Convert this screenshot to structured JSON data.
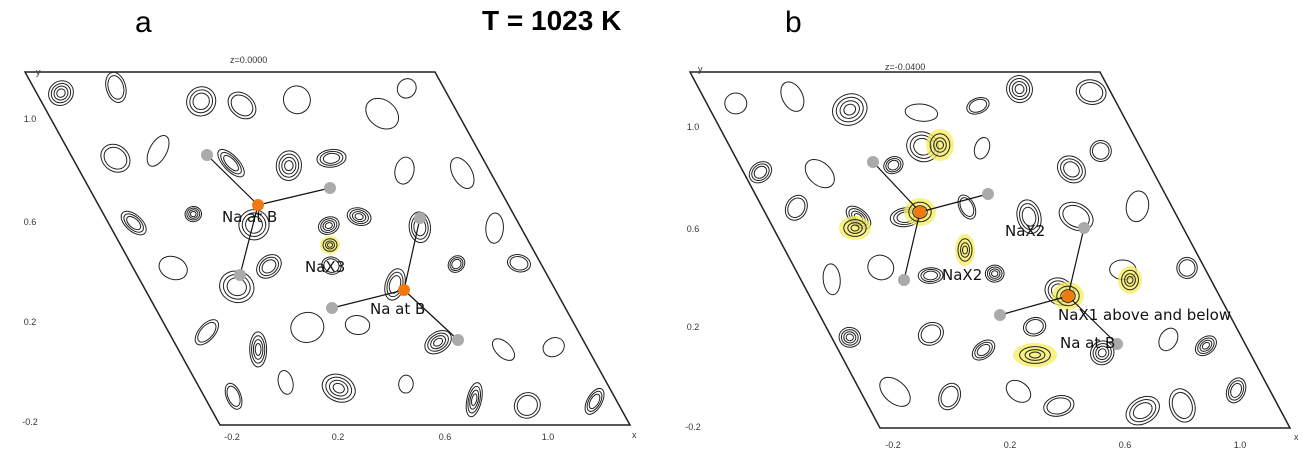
{
  "header": {
    "panel_a": "a",
    "title": "T = 1023 K",
    "panel_b": "b"
  },
  "panels": [
    {
      "z_label": "z=0.0000",
      "x_axis": "x",
      "y_axis": "y",
      "xticks": [
        "-0.2",
        "0.2",
        "0.6",
        "1.0"
      ],
      "yticks": [
        "1.0",
        "0.6",
        "0.2",
        "-0.2"
      ],
      "labels": [
        "Na at B",
        "NaX3",
        "Na at B"
      ]
    },
    {
      "z_label": "z=-0.0400",
      "x_axis": "x",
      "y_axis": "y",
      "xticks": [
        "-0.2",
        "0.2",
        "0.6",
        "1.0"
      ],
      "yticks": [
        "1.0",
        "0.6",
        "0.2",
        "-0.2"
      ],
      "labels": [
        "NaX2",
        "NaX2",
        "NaX1 above and below",
        "Na at B"
      ]
    }
  ]
}
